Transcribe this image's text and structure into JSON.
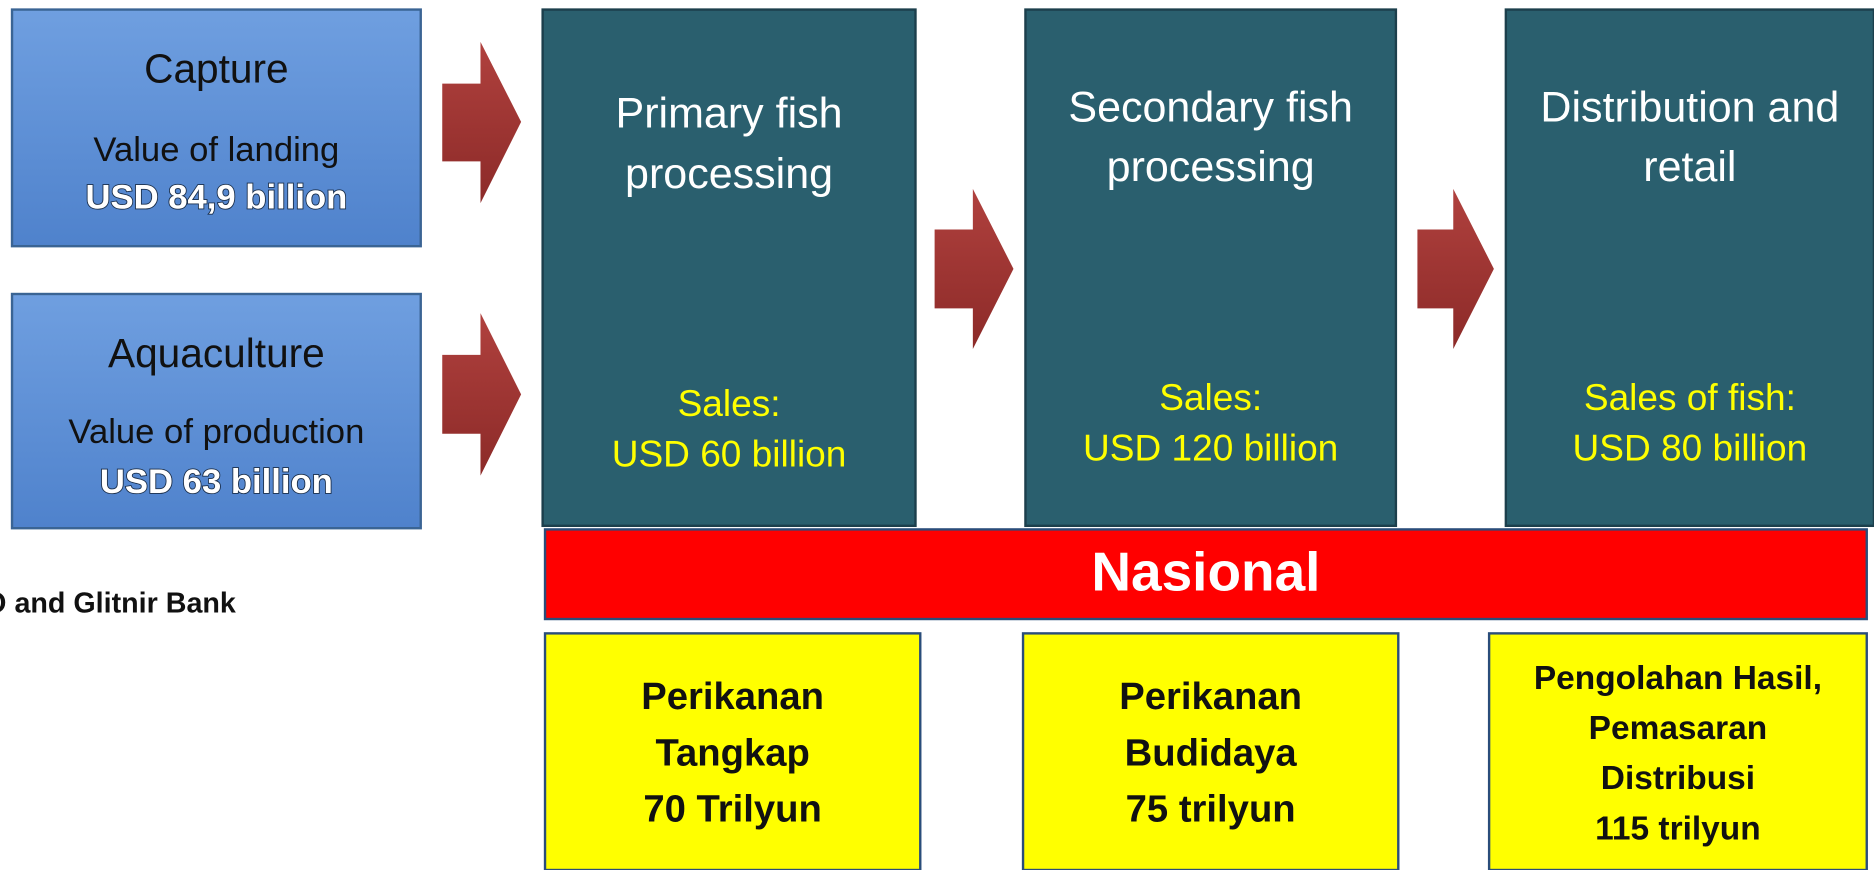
{
  "sources": [
    {
      "title": "Capture",
      "label": "Value of landing",
      "value": "USD 84,9 billion"
    },
    {
      "title": "Aquaculture",
      "label": "Value of production",
      "value": "USD 63 billion"
    }
  ],
  "stages": [
    {
      "title": [
        "Primary fish",
        "processing"
      ],
      "sales": [
        "Sales:",
        "USD 60 billion"
      ]
    },
    {
      "title": [
        "Secondary fish",
        "processing"
      ],
      "sales": [
        "Sales:",
        "USD 120 billion"
      ]
    },
    {
      "title": [
        "Distribution and",
        "retail"
      ],
      "sales": [
        "Sales of fish:",
        "USD 80 billion"
      ]
    }
  ],
  "banner": "Nasional",
  "note": "Sources: FAO and Glitnir Bank",
  "national": [
    {
      "lines": [
        "Perikanan",
        "Tangkap",
        "70 Trilyun"
      ]
    },
    {
      "lines": [
        "Perikanan",
        "Budidaya",
        "75 trilyun"
      ]
    },
    {
      "lines": [
        "Pengolahan Hasil,",
        "Pemasaran",
        "Distribusi",
        "115 trilyun"
      ]
    }
  ]
}
